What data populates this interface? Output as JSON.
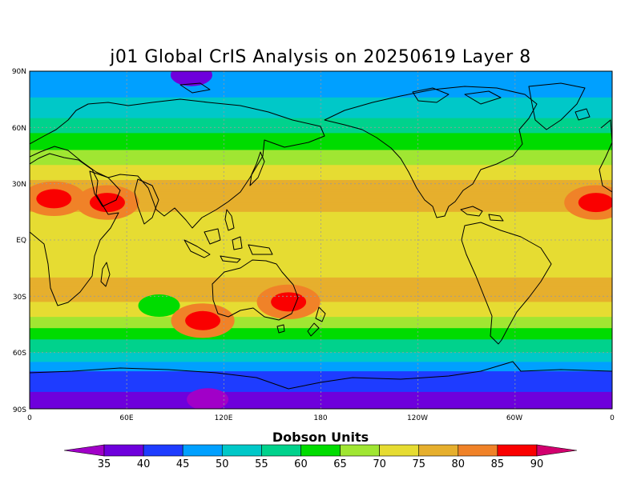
{
  "title": "j01 Global CrIS Analysis on 20250619 Layer 8",
  "colorbar": {
    "label": "Dobson Units",
    "ticks": [
      "35",
      "40",
      "45",
      "50",
      "55",
      "60",
      "65",
      "70",
      "75",
      "80",
      "85",
      "90"
    ],
    "colors": [
      "#a100c8",
      "#6e00dc",
      "#1e3cff",
      "#00a0ff",
      "#00c8c8",
      "#00d28c",
      "#00dc00",
      "#a0e632",
      "#e6dc32",
      "#e6af2d",
      "#f08228",
      "#fa0000",
      "#d2006e"
    ]
  },
  "lat_labels": [
    "90N",
    "60N",
    "30N",
    "EQ",
    "30S",
    "60S",
    "90S"
  ],
  "lon_labels": [
    "0",
    "60E",
    "120E",
    "180",
    "120W",
    "60W",
    "0"
  ],
  "chart_data": {
    "type": "heatmap",
    "title": "j01 Global CrIS Analysis on 20250619 Layer 8",
    "variable_units": "Dobson Units",
    "x_axis": "longitude",
    "x_range": [
      0,
      360
    ],
    "y_axis": "latitude",
    "y_range": [
      -90,
      90
    ],
    "color_levels": [
      35,
      40,
      45,
      50,
      55,
      60,
      65,
      70,
      75,
      80,
      85,
      90
    ],
    "lat_profile": [
      {
        "lat": 85,
        "value": 47
      },
      {
        "lat": 70,
        "value": 52
      },
      {
        "lat": 60,
        "value": 58
      },
      {
        "lat": 50,
        "value": 64
      },
      {
        "lat": 40,
        "value": 70
      },
      {
        "lat": 30,
        "value": 76
      },
      {
        "lat": 15,
        "value": 75
      },
      {
        "lat": 0,
        "value": 73
      },
      {
        "lat": -15,
        "value": 74
      },
      {
        "lat": -30,
        "value": 77
      },
      {
        "lat": -40,
        "value": 71
      },
      {
        "lat": -50,
        "value": 62
      },
      {
        "lat": -60,
        "value": 55
      },
      {
        "lat": -70,
        "value": 45
      },
      {
        "lat": -85,
        "value": 38
      }
    ],
    "hotspots": [
      {
        "lon": 15,
        "lat": 22,
        "value": 87
      },
      {
        "lon": 48,
        "lat": 20,
        "value": 86
      },
      {
        "lon": 160,
        "lat": -33,
        "value": 87
      },
      {
        "lon": 107,
        "lat": -43,
        "value": 86
      },
      {
        "lon": 350,
        "lat": 20,
        "value": 86
      }
    ],
    "lowspots": [
      {
        "lon": 80,
        "lat": -35,
        "value": 62
      },
      {
        "lon": 100,
        "lat": 88,
        "value": 38
      },
      {
        "lon": 110,
        "lat": -85,
        "value": 33
      }
    ]
  }
}
